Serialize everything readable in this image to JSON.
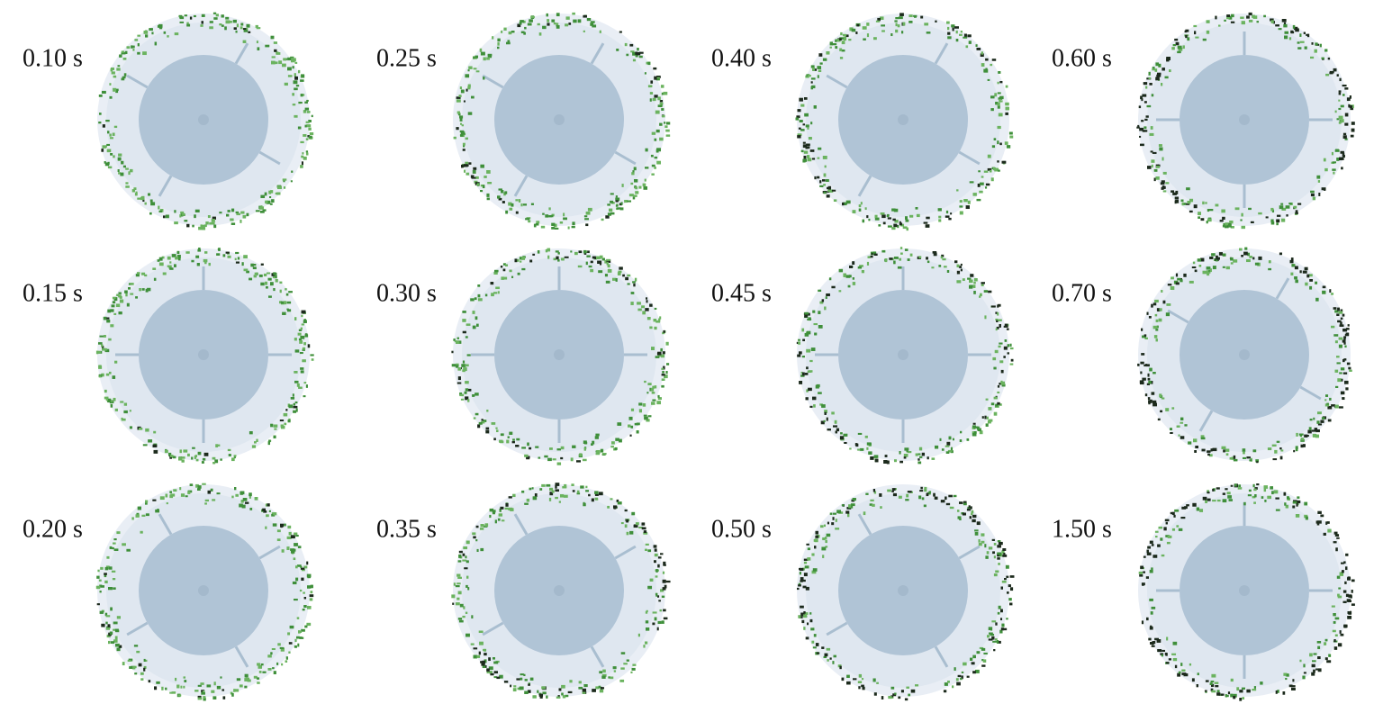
{
  "panels": [
    {
      "label": "0.10 s"
    },
    {
      "label": "0.15 s"
    },
    {
      "label": "0.20 s"
    },
    {
      "label": "0.25 s"
    },
    {
      "label": "0.30 s"
    },
    {
      "label": "0.35 s"
    },
    {
      "label": "0.40 s"
    },
    {
      "label": "0.45 s"
    },
    {
      "label": "0.50 s"
    },
    {
      "label": "0.60 s"
    },
    {
      "label": "0.70 s"
    },
    {
      "label": "1.50 s"
    }
  ]
}
